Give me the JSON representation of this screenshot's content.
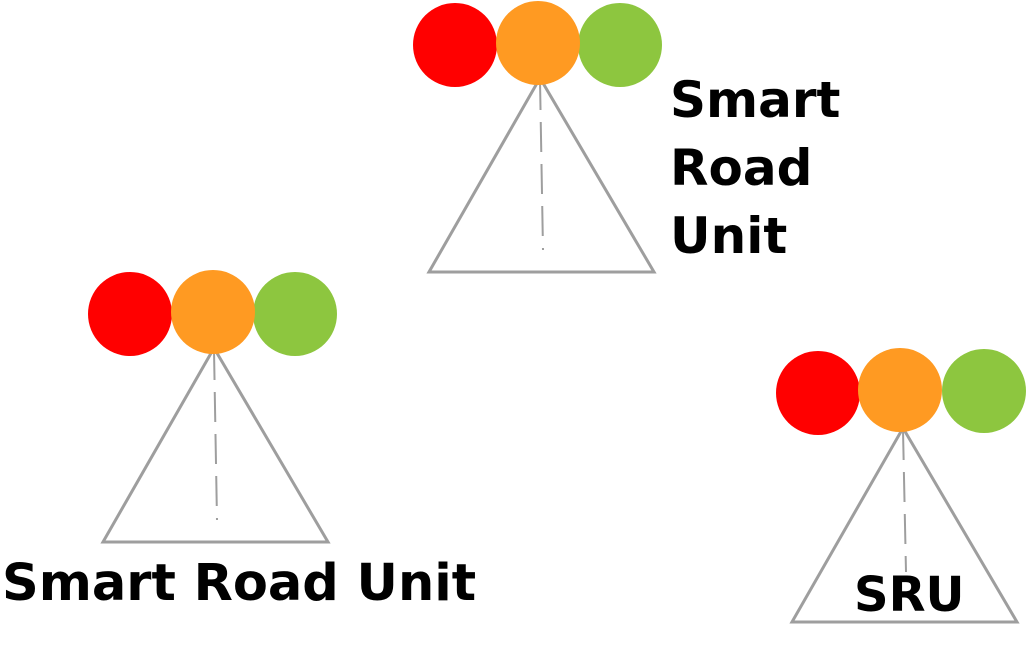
{
  "colors": {
    "red": "#ff0000",
    "orange": "#ff9a22",
    "green": "#8dc63f",
    "road": "#9e9e9e",
    "text": "#000000"
  },
  "icons": [
    "traffic-light-icon",
    "road-icon"
  ],
  "units": {
    "top": {
      "label_lines": [
        "Smart",
        "Road",
        "Unit"
      ]
    },
    "left": {
      "label": "Smart Road Unit"
    },
    "right": {
      "label": "SRU"
    }
  }
}
